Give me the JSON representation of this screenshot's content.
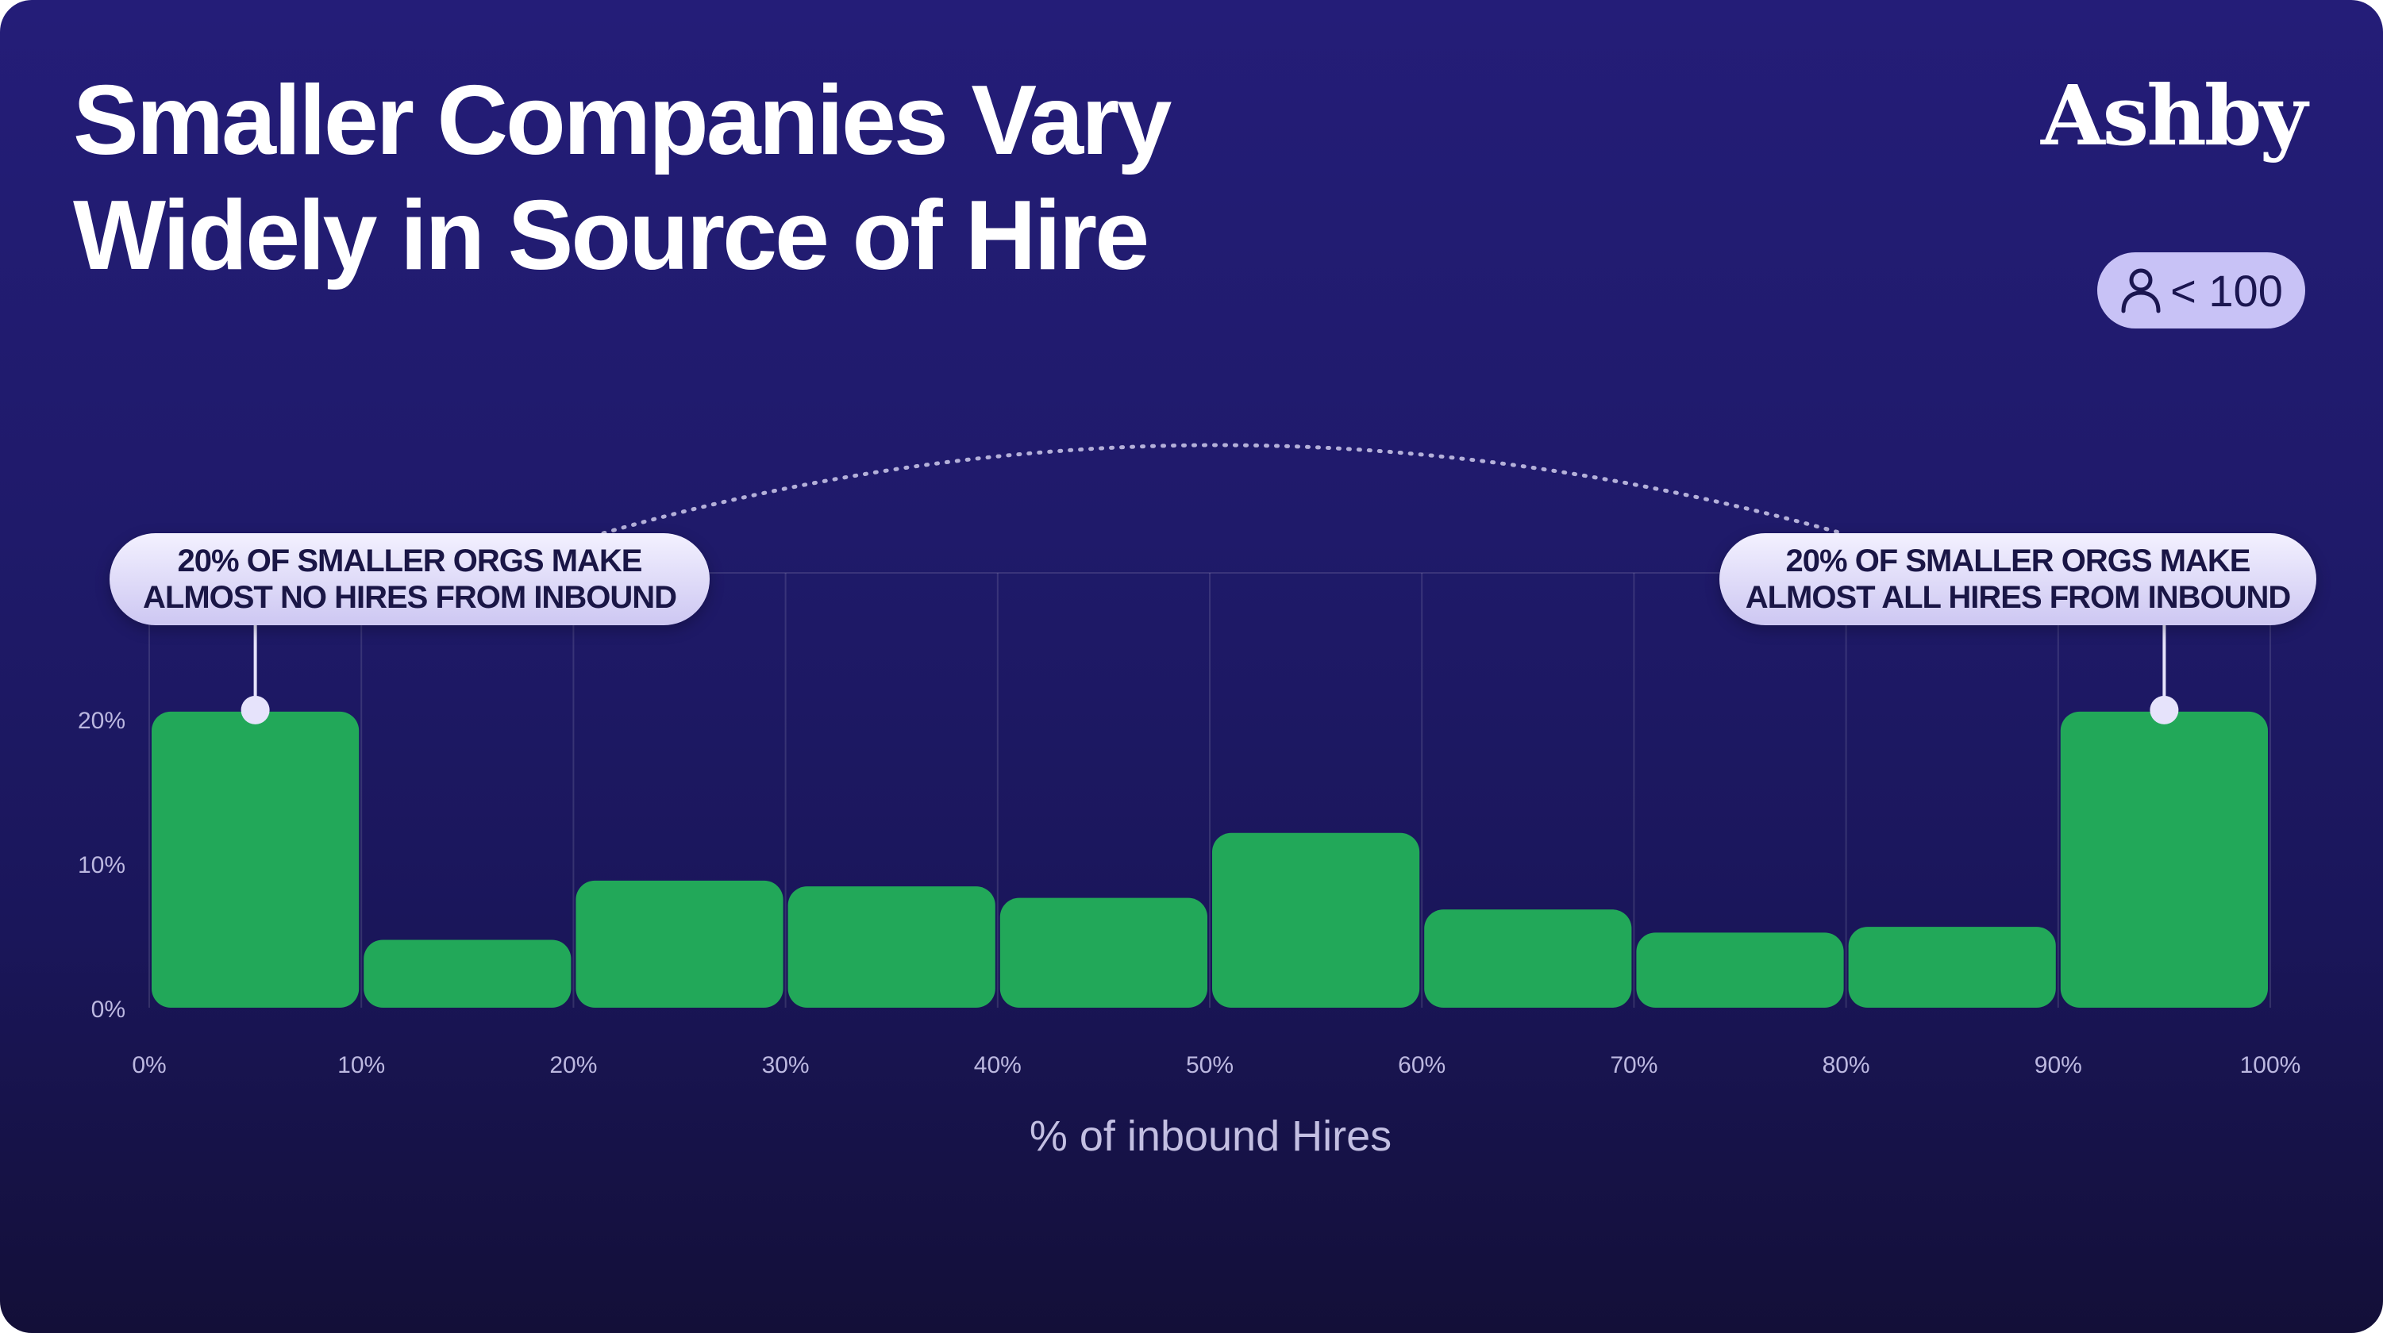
{
  "title_lines": [
    "Smaller Companies Vary",
    "Widely in Source of Hire"
  ],
  "brand": "Ashby",
  "size_badge": {
    "icon": "person-icon",
    "label": "< 100"
  },
  "callouts": {
    "left": [
      "20% OF SMALLER ORGS MAKE",
      "ALMOST NO HIRES FROM INBOUND"
    ],
    "right": [
      "20% OF SMALLER ORGS MAKE",
      "ALMOST ALL HIRES FROM INBOUND"
    ]
  },
  "colors": {
    "background_top": "#241d78",
    "background_bottom": "#130f38",
    "bar": "#22a859",
    "callout": "#e6e3fb",
    "badge": "#c8c2f6"
  },
  "chart_data": {
    "type": "bar",
    "title": "Smaller Companies Vary Widely in Source of Hire",
    "xlabel": "% of inbound Hires",
    "ylabel": "",
    "x_ticks": [
      "0%",
      "10%",
      "20%",
      "30%",
      "40%",
      "50%",
      "60%",
      "70%",
      "80%",
      "90%",
      "100%"
    ],
    "y_ticks": [
      "0%",
      "10%",
      "20%"
    ],
    "bins": [
      [
        0,
        10
      ],
      [
        10,
        20
      ],
      [
        20,
        30
      ],
      [
        30,
        40
      ],
      [
        40,
        50
      ],
      [
        50,
        60
      ],
      [
        60,
        70
      ],
      [
        70,
        80
      ],
      [
        80,
        90
      ],
      [
        90,
        100
      ]
    ],
    "values": [
      20.5,
      4.7,
      8.8,
      8.4,
      7.6,
      12.1,
      6.8,
      5.2,
      5.6,
      20.5
    ],
    "ylim": [
      0,
      30
    ],
    "grid": "vertical",
    "highlighted_bins": [
      0,
      9
    ]
  }
}
